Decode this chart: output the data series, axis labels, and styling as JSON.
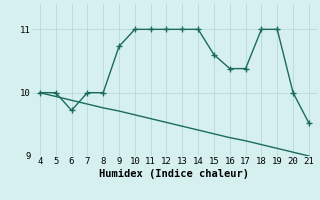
{
  "xlabel": "Humidex (Indice chaleur)",
  "ylabel": "",
  "bg_color": "#d6f0ef",
  "line_color": "#1a6b5e",
  "grid_color": "#b8dbd8",
  "line1_x": [
    4,
    5,
    6,
    7,
    8,
    9,
    10,
    11,
    12,
    13,
    14,
    15,
    16,
    17,
    18,
    19,
    20,
    21
  ],
  "line1_y": [
    10.0,
    10.0,
    9.72,
    10.0,
    10.0,
    10.73,
    11.0,
    11.0,
    11.0,
    11.0,
    11.0,
    10.6,
    10.38,
    10.38,
    11.0,
    11.0,
    10.0,
    9.52
  ],
  "line2_x": [
    4,
    5,
    6,
    7,
    8,
    9,
    10,
    11,
    12,
    13,
    14,
    15,
    16,
    17,
    18,
    19,
    20,
    21
  ],
  "line2_y": [
    10.0,
    9.94,
    9.88,
    9.82,
    9.76,
    9.71,
    9.65,
    9.59,
    9.53,
    9.47,
    9.41,
    9.35,
    9.29,
    9.24,
    9.18,
    9.12,
    9.06,
    9.0
  ],
  "xlim": [
    3.5,
    21.5
  ],
  "ylim": [
    9.0,
    11.4
  ],
  "xticks": [
    4,
    5,
    6,
    7,
    8,
    9,
    10,
    11,
    12,
    13,
    14,
    15,
    16,
    17,
    18,
    19,
    20,
    21
  ],
  "yticks": [
    9,
    10,
    11
  ],
  "marker": "+",
  "markersize": 4,
  "linewidth": 1.0,
  "xlabel_fontsize": 7.5,
  "tick_fontsize": 6.5
}
